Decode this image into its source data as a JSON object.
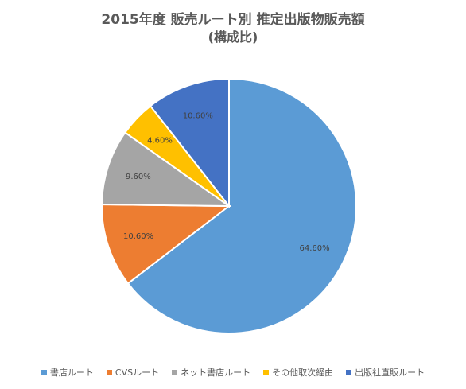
{
  "chart_data": {
    "type": "pie",
    "title": "2015年度 販売ルート別 推定出版物販売額",
    "subtitle": "(構成比)",
    "legend_position": "bottom",
    "slices": [
      {
        "name": "書店ルート",
        "value": 64.6,
        "label": "64.60%",
        "color": "#5B9BD5"
      },
      {
        "name": "CVSルート",
        "value": 10.6,
        "label": "10.60%",
        "color": "#ED7D31"
      },
      {
        "name": "ネット書店ルート",
        "value": 9.6,
        "label": "9.60%",
        "color": "#A5A5A5"
      },
      {
        "name": "その他取次経由",
        "value": 4.6,
        "label": "4.60%",
        "color": "#FFC000"
      },
      {
        "name": "出版社直販ルート",
        "value": 10.6,
        "label": "10.60%",
        "color": "#4472C4"
      }
    ]
  }
}
